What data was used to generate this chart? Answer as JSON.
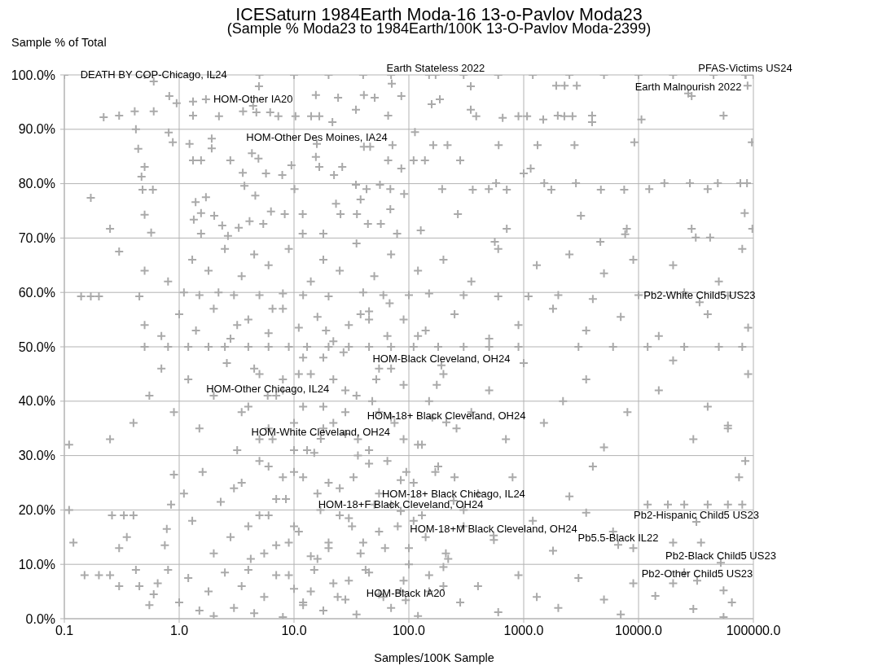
{
  "chart_data": {
    "type": "scatter",
    "title": "ICESaturn 1984Earth Moda-16 13-o-Pavlov Moda23",
    "subtitle": "(Sample % Moda23 to 1984Earth/100K 13-O-Pavlov Moda-2399)",
    "xlabel": "Samples/100K Sample",
    "ylabel": "Sample % of Total",
    "color": "#aaaaaa",
    "marker": "cross",
    "log": "x",
    "grid": true,
    "xlim": [
      0.1,
      100000
    ],
    "xticks": [
      0.1,
      {
        "value": 1,
        "label": "1.0"
      },
      {
        "value": 10,
        "label": "10.0"
      },
      {
        "value": 100,
        "label": "100.0"
      },
      {
        "value": 1000,
        "label": "1000.0"
      },
      {
        "value": 10000,
        "label": "10000.0"
      },
      {
        "value": 100000,
        "label": "100000.0"
      }
    ],
    "ylim": [
      0,
      100
    ],
    "yticks": [
      {
        "value": 0,
        "label": "0.0%"
      },
      {
        "value": 10,
        "label": "10.0%"
      },
      {
        "value": 20,
        "label": "20.0%"
      },
      {
        "value": 30,
        "label": "30.0%"
      },
      {
        "value": 40,
        "label": "40.0%"
      },
      {
        "value": 50,
        "label": "50.0%"
      },
      {
        "value": 60,
        "label": "60.0%"
      },
      {
        "value": 70,
        "label": "70.0%"
      },
      {
        "value": 80,
        "label": "80.0%"
      },
      {
        "value": 90,
        "label": "90.0%"
      },
      {
        "value": 100,
        "label": "100.0%"
      }
    ],
    "x": [
      0.1,
      0.5,
      2,
      5,
      10,
      20,
      40,
      70,
      150,
      300,
      600,
      1200,
      2500,
      5000,
      10000,
      20000,
      45000,
      86000,
      100000,
      4.95,
      71,
      346,
      1920,
      2270,
      2900,
      89000,
      0.22,
      0.3,
      0.41,
      0.6,
      0.42,
      0.44,
      0.5,
      0.47,
      0.48,
      0.59,
      0.17,
      0.5,
      0.25,
      0.57,
      0.82,
      0.95,
      1.32,
      1.71,
      1.32,
      2.22,
      3.6,
      4.7,
      6.2,
      7.3,
      10.3,
      14.1,
      16.6,
      21.6,
      15.5,
      24.2,
      34.6,
      40.6,
      50.4,
      66,
      86,
      158,
      186,
      0.81,
      0.88,
      1.23,
      1.92,
      1.32,
      1.92,
      1.55,
      2.79,
      4.3,
      4.9,
      3.58,
      5.7,
      7.9,
      9.5,
      3.7,
      4.6,
      10.1,
      15.5,
      16.6,
      26.3,
      22.3,
      34.6,
      42.8,
      56,
      69,
      91,
      23.2,
      38,
      69,
      66,
      86,
      110,
      138,
      195,
      163,
      217,
      113,
      40.6,
      46,
      72,
      1.39,
      1.71,
      1.55,
      2.02,
      1.34,
      2.37,
      3.3,
      4.1,
      5.4,
      6.3,
      8.3,
      11.9,
      25.4,
      35.3,
      44,
      57,
      79,
      127,
      1.55,
      2.66,
      11.9,
      18,
      346,
      386,
      656,
      900,
      1070,
      1480,
      1980,
      2260,
      2660,
      3940,
      3940,
      10600,
      55000,
      29000,
      605,
      1320,
      2770,
      9200,
      97000,
      280,
      1150,
      1000,
      360,
      497,
      575,
      712,
      1510,
      1740,
      2850,
      4700,
      7500,
      12400,
      16800,
      28000,
      40000,
      49000,
      77000,
      88000,
      267,
      3150,
      84000,
      712,
      7900,
      29000,
      98000,
      7650,
      31500,
      42000,
      560,
      4650,
      0.14,
      0.17,
      0.2,
      0.45,
      1.1,
      1.5,
      2.2,
      3,
      5,
      8,
      12,
      20,
      40,
      60,
      100,
      150,
      300,
      600,
      1100,
      2000,
      4000,
      10000,
      25000,
      60000,
      0.8,
      1.3,
      1.8,
      2.5,
      3.5,
      4.5,
      6,
      9,
      14,
      18,
      25,
      35,
      50,
      70,
      120,
      200,
      350,
      600,
      1300,
      2500,
      5000,
      9000,
      20000,
      50000,
      80000,
      0.5,
      0.3,
      0.5,
      0.7,
      1,
      1.4,
      2,
      2.8,
      4,
      6,
      8,
      11,
      16,
      22,
      30,
      45,
      65,
      90,
      140,
      250,
      500,
      900,
      1800,
      3500,
      7000,
      15000,
      40000,
      90000,
      0.5,
      0.8,
      1.2,
      1.8,
      2.5,
      4,
      6,
      9,
      13,
      20,
      30,
      45,
      70,
      110,
      180,
      300,
      500,
      900,
      3000,
      6000,
      12000,
      25000,
      50000,
      80000,
      0.11,
      0.25,
      0.4,
      0.55,
      0.7,
      0.9,
      1.2,
      1.5,
      2,
      2.6,
      3.2,
      4,
      5,
      6.5,
      8,
      10,
      12,
      15,
      18,
      22,
      28,
      35,
      45,
      55,
      70,
      90,
      120,
      150,
      200,
      260,
      350,
      500,
      700,
      1000,
      1500,
      2200,
      3500,
      5000,
      8000,
      15000,
      30000,
      60000,
      90000,
      20000,
      40000,
      0.11,
      0.12,
      0.26,
      0.33,
      0.35,
      0.4,
      0.3,
      0.75,
      0.78,
      0.85,
      0.9,
      1.1,
      1.3,
      1.6,
      2,
      2.3,
      2.8,
      3.5,
      4.2,
      5,
      6,
      7,
      8.5,
      10,
      12,
      14,
      17,
      20,
      25,
      30,
      38,
      45,
      55,
      70,
      85,
      100,
      130,
      170,
      220,
      300,
      400,
      550,
      800,
      1200,
      1800,
      2500,
      4000,
      6000,
      9000,
      12000,
      18000,
      25000,
      40000,
      60000,
      80000,
      20000,
      35000,
      75000,
      60000,
      85000,
      3500,
      0.15,
      0.2,
      0.25,
      0.3,
      0.42,
      0.45,
      0.55,
      0.6,
      0.65,
      0.8,
      1,
      1.2,
      1.5,
      1.8,
      2,
      2.5,
      3,
      3.5,
      4.5,
      5.5,
      7,
      8,
      10,
      12,
      15,
      18,
      22,
      28,
      35,
      45,
      55,
      70,
      90,
      120,
      150,
      200,
      280,
      400,
      600,
      900,
      1300,
      2000,
      3000,
      5000,
      7000,
      9000,
      14000,
      20000,
      30000,
      55000,
      55000,
      25000,
      65000,
      0.6,
      171,
      85000,
      27100,
      4.4,
      15.8,
      34000,
      192,
      5.9,
      212,
      17.1,
      245,
      85,
      31900,
      547,
      6650,
      52000,
      32400,
      94,
      3,
      3.5,
      4,
      4.5,
      5,
      5.5,
      6,
      7,
      8,
      9,
      10,
      11,
      12,
      13,
      14,
      16,
      18,
      20,
      22,
      25,
      28,
      30,
      33,
      36,
      40,
      45,
      50,
      55,
      60,
      65,
      70,
      80,
      90,
      100,
      110,
      120,
      140,
      160,
      180,
      200,
      4,
      5,
      6,
      7,
      8,
      9,
      10,
      12,
      14,
      16,
      18,
      20,
      24,
      28,
      32,
      36,
      42,
      48,
      55,
      62,
      75,
      85,
      95,
      110,
      130,
      150,
      175,
      210,
      250,
      300,
      3.2,
      6.5,
      11,
      19,
      27,
      38,
      52,
      68
    ],
    "values": [
      100,
      100,
      100,
      100,
      100,
      100,
      100,
      100,
      100,
      100,
      100,
      100,
      100,
      100,
      100,
      100,
      100,
      100,
      100,
      97.9,
      98.4,
      97.9,
      98,
      98,
      98,
      98,
      92.2,
      92.5,
      93.3,
      93.3,
      90,
      86.4,
      83.1,
      81.3,
      78.9,
      78.9,
      77.4,
      74.3,
      71.7,
      71,
      96.1,
      94.8,
      95.1,
      95.5,
      92.5,
      92.4,
      93.3,
      93.1,
      93.1,
      92.4,
      92.4,
      92.4,
      92.4,
      91.3,
      96.3,
      95.8,
      93.6,
      96.3,
      95.8,
      92.5,
      96.1,
      94.6,
      95.5,
      89.4,
      87.6,
      87.3,
      88.3,
      84.3,
      86.5,
      84.3,
      84.3,
      85.6,
      84.6,
      82,
      81.9,
      81.6,
      83.4,
      79.6,
      77.8,
      79,
      84.9,
      83.1,
      83.1,
      81.6,
      79.8,
      79,
      79.8,
      79,
      78.1,
      76.3,
      77.1,
      75.3,
      84.3,
      82.8,
      84.3,
      84.3,
      79,
      87.1,
      87.1,
      89.5,
      86.8,
      86.8,
      87.1,
      76.6,
      77.5,
      74.6,
      74.1,
      73.4,
      72.3,
      71.9,
      73.1,
      72.6,
      74.9,
      74.4,
      74.4,
      74.4,
      74.4,
      72.6,
      72.6,
      70.8,
      71.4,
      70.8,
      70.4,
      70.8,
      70.8,
      93.6,
      92.4,
      92.1,
      92.4,
      92.4,
      91.8,
      92.5,
      92.4,
      92.4,
      92.5,
      91.3,
      91.8,
      92.5,
      96.1,
      87.1,
      87.1,
      87.1,
      87.6,
      87.6,
      84.3,
      82.8,
      81.9,
      78.9,
      79,
      80.1,
      78.9,
      80.1,
      78.9,
      80.1,
      78.9,
      78.9,
      79,
      80.1,
      80.1,
      79,
      80.1,
      80.1,
      80.1,
      74.4,
      74.1,
      74.6,
      71.7,
      71.7,
      71.7,
      71.7,
      70.7,
      70.1,
      70.1,
      69.3,
      69.3,
      59.3,
      59.3,
      59.3,
      59.3,
      60,
      59.5,
      60,
      59.5,
      59.5,
      59.8,
      59.5,
      59.3,
      60,
      59.5,
      59.5,
      59.8,
      59.5,
      59.3,
      59.3,
      59.5,
      58.8,
      59.5,
      60,
      59.4,
      62,
      66,
      64,
      68,
      63,
      67,
      65,
      68,
      62,
      66,
      64,
      69,
      63,
      67,
      64,
      66,
      62,
      68,
      65,
      67,
      63.5,
      66,
      65,
      62,
      68,
      64,
      67.5,
      54,
      52,
      56,
      53,
      57,
      51.5,
      55,
      52.5,
      57,
      53.5,
      55.5,
      51,
      54,
      56.5,
      52,
      55,
      53,
      56,
      51.5,
      54,
      57,
      53,
      55.5,
      52,
      56,
      53.5,
      50,
      50,
      50,
      50,
      50,
      50,
      50,
      50,
      50,
      50,
      50,
      50,
      50,
      50,
      50,
      50,
      50,
      50,
      50,
      50,
      50,
      50,
      50,
      50,
      32,
      33,
      36,
      41,
      46,
      38,
      44,
      35,
      41,
      47,
      31,
      39,
      45,
      33,
      42,
      36,
      48,
      30.5,
      39,
      44,
      34,
      41,
      31,
      46,
      37,
      43,
      32,
      40,
      45,
      35,
      38,
      42,
      33,
      47,
      36,
      40,
      44,
      31.5,
      38,
      42,
      33,
      35,
      45,
      47.5,
      39,
      20,
      14,
      19,
      19,
      15,
      19,
      13,
      13.5,
      16.5,
      21,
      26.5,
      23,
      18,
      27,
      12,
      21.5,
      15,
      25,
      11,
      19,
      28,
      13.5,
      22,
      17,
      26,
      11.5,
      20,
      14,
      24,
      18.5,
      12,
      28.5,
      16,
      21,
      25.5,
      13,
      19,
      27,
      11,
      17,
      23,
      14.5,
      26,
      18,
      12.5,
      22.5,
      28,
      16,
      13,
      21,
      21,
      21,
      21,
      21,
      21,
      14,
      14,
      26,
      35.5,
      29,
      19.5,
      8,
      8,
      8,
      6,
      9,
      6,
      2.5,
      4.5,
      6.5,
      9,
      3,
      7.5,
      1.5,
      5,
      0.5,
      8.5,
      2,
      6,
      1,
      4,
      8,
      0.3,
      5.5,
      2.5,
      9,
      1.5,
      6.5,
      3.5,
      0.8,
      8.5,
      4.5,
      2,
      7,
      0.5,
      5,
      9.5,
      3,
      6,
      1.2,
      8,
      4,
      2,
      7.5,
      3.5,
      0.8,
      6.5,
      4.2,
      6.5,
      1.8,
      5.2,
      0.3,
      8.5,
      3,
      98.8,
      100,
      100,
      96.6,
      94.3,
      87.3,
      58.2,
      46.6,
      41,
      36.1,
      33.1,
      21.7,
      19.8,
      17.8,
      15.3,
      13.6,
      10.3,
      7,
      3.4,
      24,
      38,
      17,
      46,
      29,
      12,
      35,
      22,
      44,
      8,
      27,
      16,
      39,
      31,
      5,
      23,
      48,
      13,
      36,
      19,
      42,
      7,
      26,
      33,
      14,
      55,
      21,
      38,
      4,
      29,
      46,
      17,
      33,
      10,
      25,
      52,
      15,
      37,
      28,
      6,
      9,
      33,
      19,
      41,
      26,
      14,
      31,
      3,
      45,
      11,
      35,
      25,
      4,
      38,
      17,
      30,
      9,
      40,
      23,
      13,
      36,
      5,
      27,
      18,
      32,
      8,
      43,
      12,
      26,
      20,
      54,
      57,
      45,
      53,
      49,
      56,
      44,
      58
    ],
    "annotations": [
      {
        "text": "DEATH BY COP-Chicago, IL24",
        "x": 0.6,
        "y": 98.8
      },
      {
        "text": "Earth Stateless 2022",
        "x": 171,
        "y": 100
      },
      {
        "text": "PFAS-Victims US24",
        "x": 85000,
        "y": 100
      },
      {
        "text": "Earth Malnourish 2022",
        "x": 27100,
        "y": 96.6
      },
      {
        "text": "HOM-Other IA20",
        "x": 4.4,
        "y": 94.3
      },
      {
        "text": "HOM-Other Des Moines, IA24",
        "x": 15.8,
        "y": 87.3
      },
      {
        "text": "Pb2-White Child5 US23",
        "x": 34000,
        "y": 58.2
      },
      {
        "text": "HOM-Black Cleveland, OH24",
        "x": 192,
        "y": 46.6
      },
      {
        "text": "HOM-Other Chicago, IL24",
        "x": 5.9,
        "y": 41
      },
      {
        "text": "HOM-18+ Black Cleveland, OH24",
        "x": 212,
        "y": 36.1
      },
      {
        "text": "HOM-White Cleveland, OH24",
        "x": 17.1,
        "y": 33.1
      },
      {
        "text": "HOM-18+ Black Chicago, IL24",
        "x": 245,
        "y": 21.7
      },
      {
        "text": "HOM-18+F Black Cleveland, OH24",
        "x": 85,
        "y": 19.8
      },
      {
        "text": "Pb2-Hispanic Child5 US23",
        "x": 31900,
        "y": 17.8
      },
      {
        "text": "HOM-18+M Black Cleveland, OH24",
        "x": 547,
        "y": 15.3
      },
      {
        "text": "Pb5.5-Black IL22",
        "x": 6650,
        "y": 13.6
      },
      {
        "text": "Pb2-Black Child5 US23",
        "x": 52000,
        "y": 10.3
      },
      {
        "text": "Pb2-Other Child5 US23",
        "x": 32400,
        "y": 7
      },
      {
        "text": "HOM-Black IA20",
        "x": 94,
        "y": 3.4
      }
    ]
  }
}
